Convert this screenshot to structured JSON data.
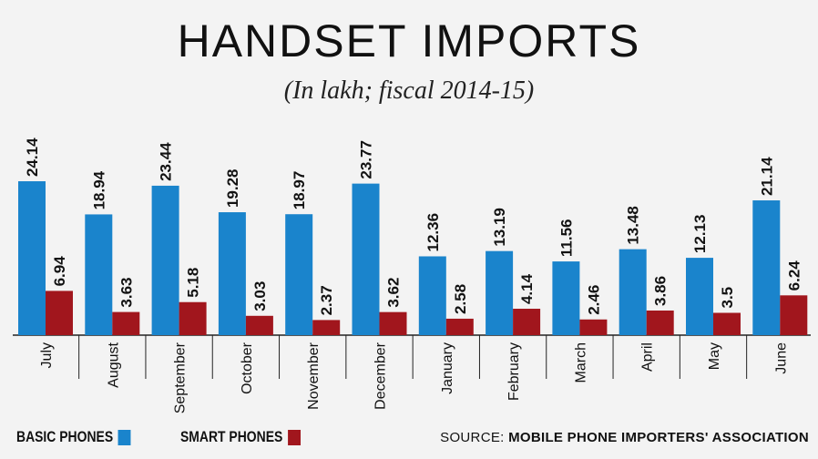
{
  "title": "HANDSET IMPORTS",
  "subtitle": "(In lakh; fiscal 2014-15)",
  "legend": {
    "basic": "BASIC PHONES",
    "smart": "SMART PHONES"
  },
  "source": {
    "prefix": "SOURCE:",
    "name": "MOBILE PHONE IMPORTERS' ASSOCIATION"
  },
  "colors": {
    "basic": "#1a84cc",
    "smart": "#a1161d",
    "background": "#f3f3f3",
    "text": "#111111"
  },
  "chart_data": {
    "type": "bar",
    "title": "HANDSET IMPORTS",
    "subtitle": "(In lakh; fiscal 2014-15)",
    "xlabel": "",
    "ylabel": "",
    "ylim": [
      0,
      25
    ],
    "grid": false,
    "legend_position": "bottom-left",
    "categories": [
      "July",
      "August",
      "September",
      "October",
      "November",
      "December",
      "January",
      "February",
      "March",
      "April",
      "May",
      "June"
    ],
    "series": [
      {
        "name": "BASIC PHONES",
        "values": [
          24.14,
          18.94,
          23.44,
          19.28,
          18.97,
          23.77,
          12.36,
          13.19,
          11.56,
          13.48,
          12.13,
          21.14
        ],
        "labels": [
          "24.14",
          "18.94",
          "23.44",
          "19.28",
          "18.97",
          "23.77",
          "12.36",
          "13.19",
          "11.56",
          "13.48",
          "12.13",
          "21.14"
        ]
      },
      {
        "name": "SMART PHONES",
        "values": [
          6.94,
          3.63,
          5.18,
          3.03,
          2.37,
          3.62,
          2.58,
          4.14,
          2.46,
          3.86,
          3.5,
          6.24
        ],
        "labels": [
          "6.94",
          "3.63",
          "5.18",
          "3.03",
          "2.37",
          "3.62",
          "2.58",
          "4.14",
          "2.46",
          "3.86",
          "3.5",
          "6.24"
        ]
      }
    ]
  }
}
